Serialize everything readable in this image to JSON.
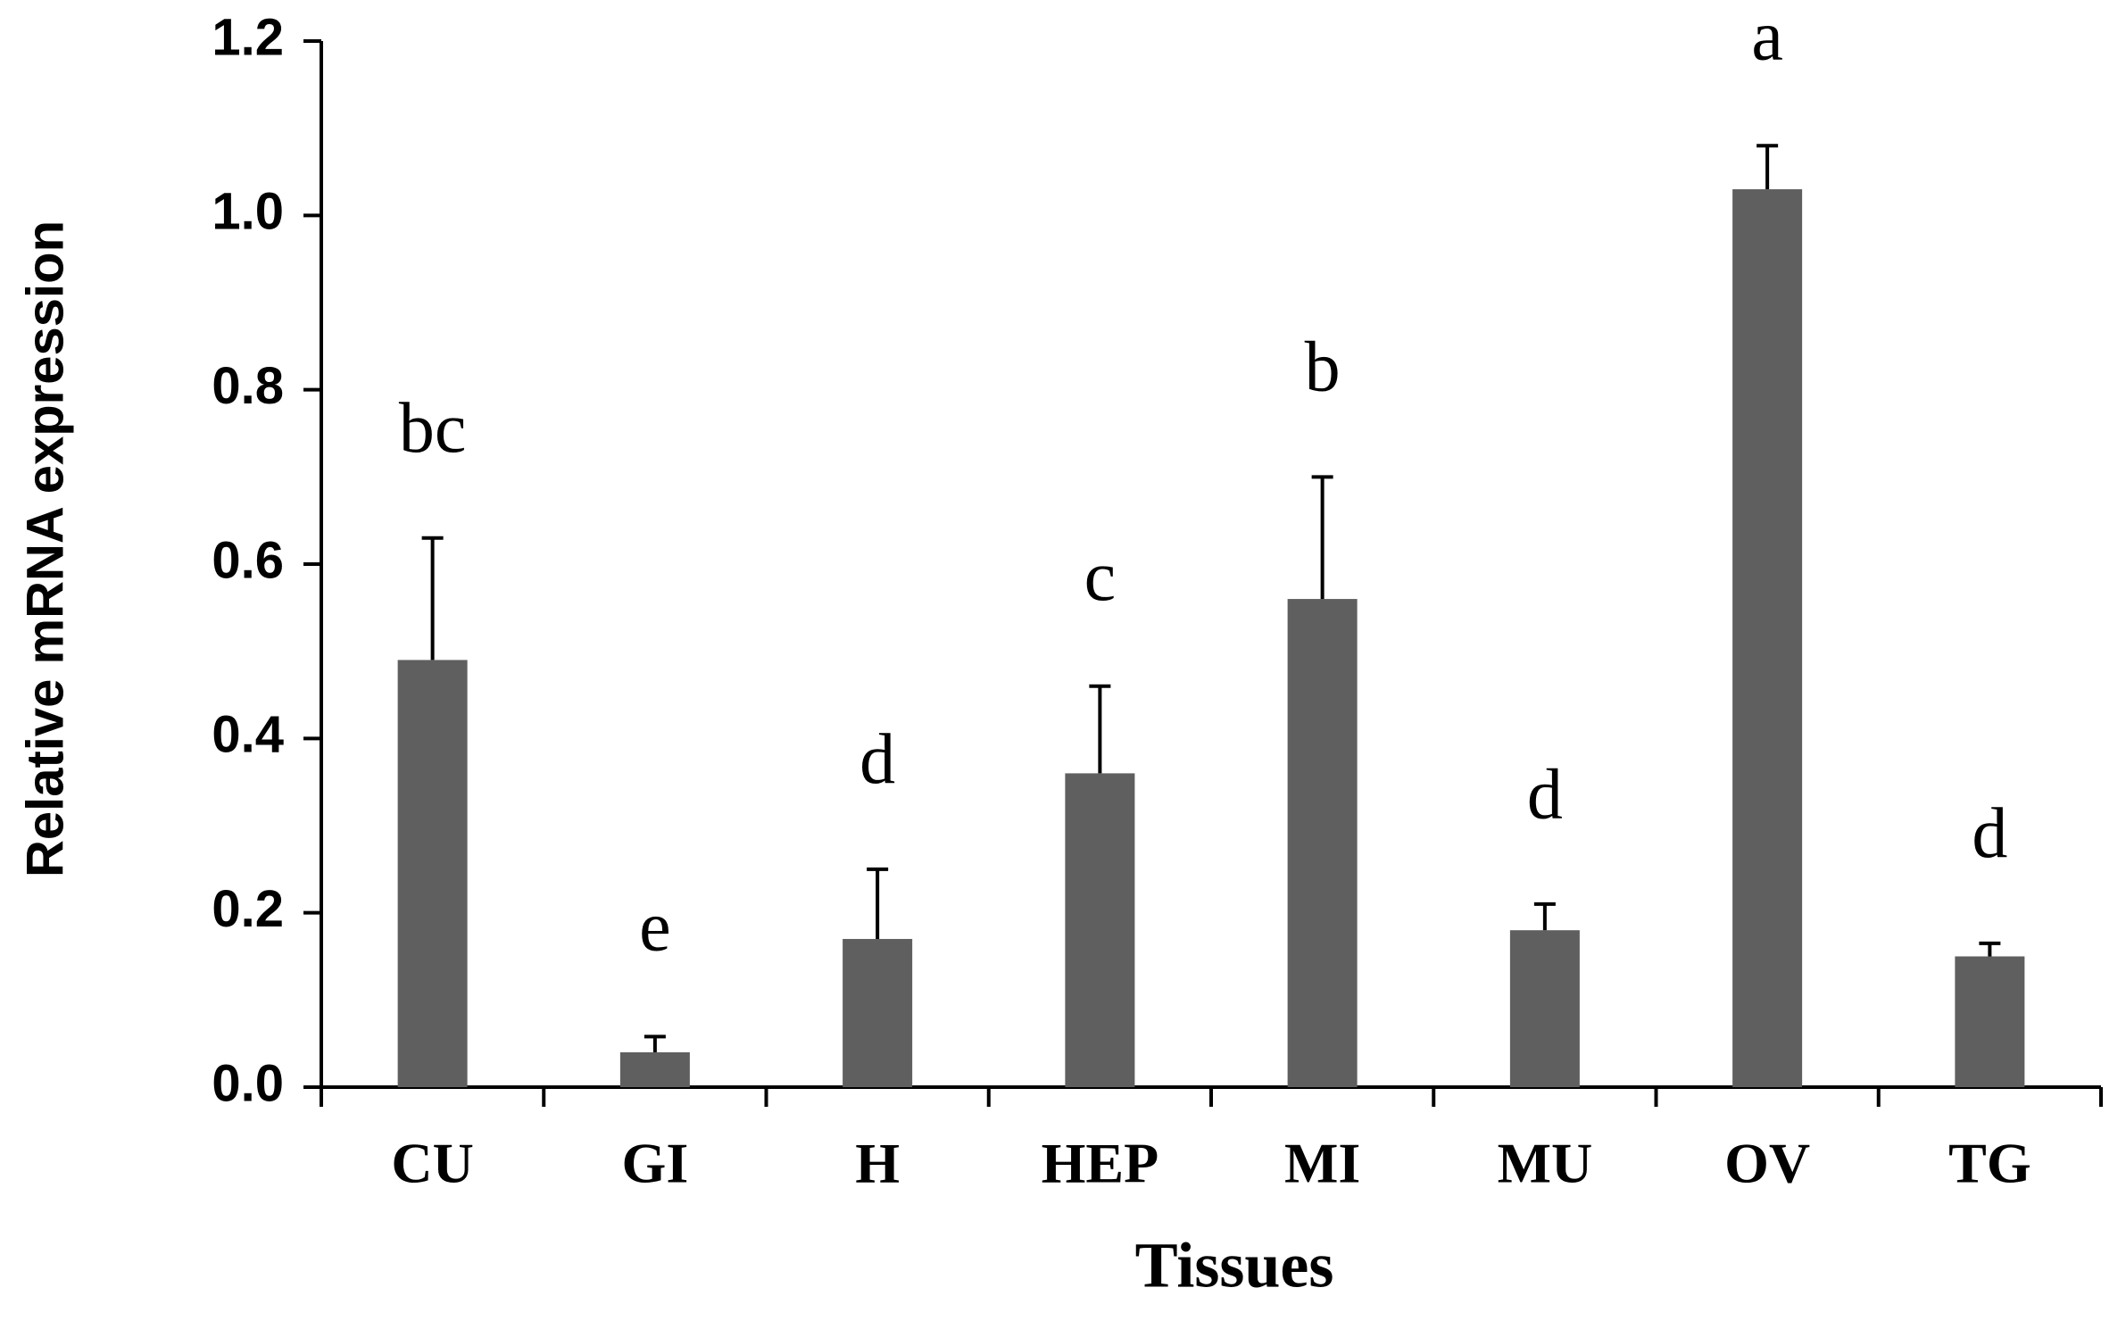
{
  "chart_data": {
    "type": "bar",
    "x_label": "Tissues",
    "y_label": "Relative mRNA expression",
    "categories": [
      "CU",
      "GI",
      "H",
      "HEP",
      "MI",
      "MU",
      "OV",
      "TG"
    ],
    "values": [
      0.49,
      0.04,
      0.17,
      0.36,
      0.56,
      0.18,
      1.03,
      0.15
    ],
    "errors": [
      0.14,
      0.018,
      0.08,
      0.1,
      0.14,
      0.03,
      0.05,
      0.015
    ],
    "annotations": [
      "bc",
      "e",
      "d",
      "c",
      "b",
      "d",
      "a",
      "d"
    ],
    "color": "#5f5f5f",
    "ylim": [
      0,
      1.2
    ],
    "yticks": [
      {
        "value": 0,
        "label": "0.0"
      },
      0.2,
      0.4,
      0.6,
      0.8,
      {
        "value": 1,
        "label": "1.0"
      },
      1.2
    ]
  }
}
